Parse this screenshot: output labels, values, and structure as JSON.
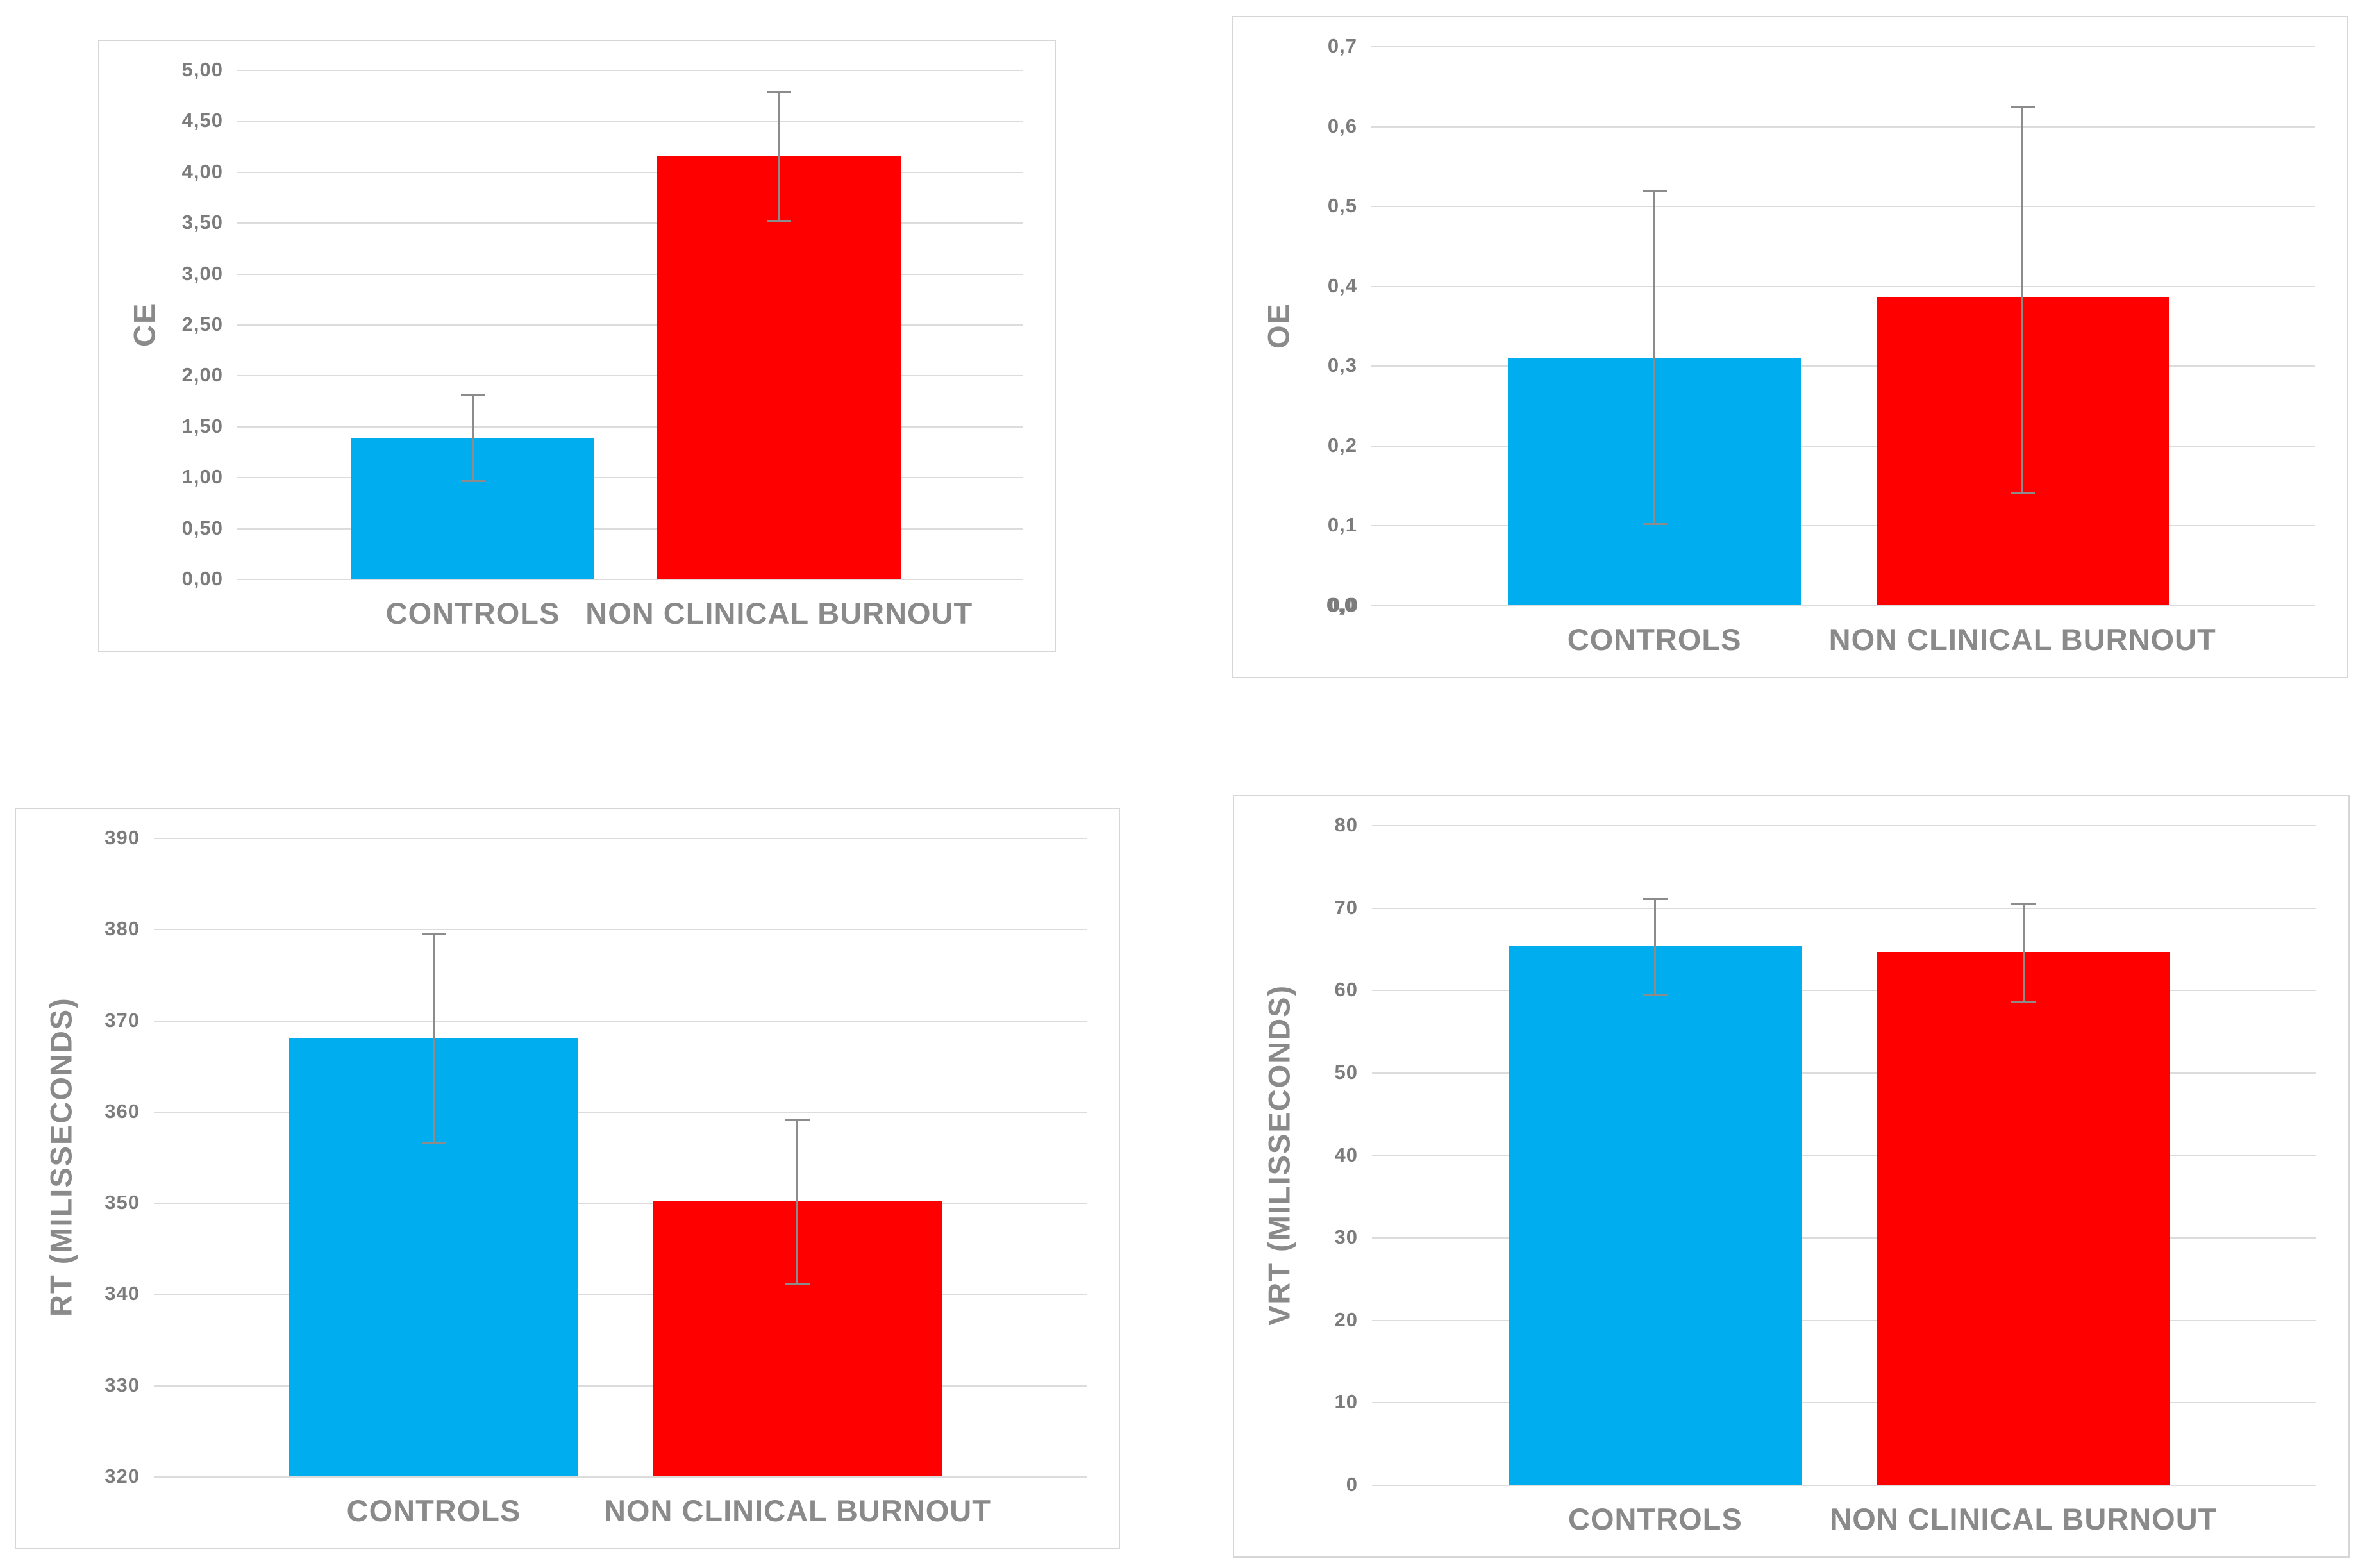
{
  "page": {
    "background": "#ffffff"
  },
  "colors": {
    "controls_bar": "#00AEEF",
    "burnout_bar": "#FF0000",
    "grid_line": "#DCDCDC",
    "panel_border": "#D6D6D6",
    "axis_text": "#8A8A8A",
    "tick_text": "#7C7C7C",
    "error_bar": "#8C8C8C"
  },
  "chart_data": [
    {
      "id": "ce",
      "type": "bar",
      "title": "",
      "ylabel": "CE",
      "xlabel": "",
      "categories": [
        "CONTROLS",
        "NON CLINICAL BURNOUT"
      ],
      "values": [
        1.38,
        4.15
      ],
      "error_low": [
        0.95,
        3.51
      ],
      "error_high": [
        1.82,
        4.79
      ],
      "ylim": [
        0,
        5
      ],
      "ytick_step": 0.5,
      "ytick_labels": [
        "0,00",
        "0,50",
        "1,00",
        "1,50",
        "2,00",
        "2,50",
        "3,00",
        "3,50",
        "4,00",
        "4,50",
        "5,00"
      ],
      "grid": true,
      "legend_position": "none",
      "bar_colors": [
        "#00AEEF",
        "#FF0000"
      ],
      "bold_bottom_tick": false
    },
    {
      "id": "oe",
      "type": "bar",
      "title": "",
      "ylabel": "OE",
      "xlabel": "",
      "categories": [
        "CONTROLS",
        "NON CLINICAL BURNOUT"
      ],
      "values": [
        0.31,
        0.385
      ],
      "error_low": [
        0.1,
        0.14
      ],
      "error_high": [
        0.52,
        0.625
      ],
      "ylim": [
        0,
        0.7
      ],
      "ytick_step": 0.1,
      "ytick_labels": [
        "0,0",
        "0,1",
        "0,2",
        "0,3",
        "0,4",
        "0,5",
        "0,6",
        "0,7"
      ],
      "grid": true,
      "legend_position": "none",
      "bar_colors": [
        "#00AEEF",
        "#FF0000"
      ],
      "bold_bottom_tick": true
    },
    {
      "id": "rt",
      "type": "bar",
      "title": "",
      "ylabel": "RT (MILISSECONDS)",
      "xlabel": "",
      "categories": [
        "CONTROLS",
        "NON CLINICAL BURNOUT"
      ],
      "values": [
        368,
        350.2
      ],
      "error_low": [
        356.5,
        341
      ],
      "error_high": [
        379.5,
        359.2
      ],
      "ylim": [
        320,
        390
      ],
      "ytick_step": 10,
      "ytick_labels": [
        "320",
        "330",
        "340",
        "350",
        "360",
        "370",
        "380",
        "390"
      ],
      "grid": true,
      "legend_position": "none",
      "bar_colors": [
        "#00AEEF",
        "#FF0000"
      ],
      "bold_bottom_tick": false
    },
    {
      "id": "vrt",
      "type": "bar",
      "title": "",
      "ylabel": "VRT (MILISSECONDS)",
      "xlabel": "",
      "categories": [
        "CONTROLS",
        "NON CLINICAL BURNOUT"
      ],
      "values": [
        65.3,
        64.6
      ],
      "error_low": [
        59.3,
        58.4
      ],
      "error_high": [
        71.1,
        70.6
      ],
      "ylim": [
        0,
        80
      ],
      "ytick_step": 10,
      "ytick_labels": [
        "0",
        "10",
        "20",
        "30",
        "40",
        "50",
        "60",
        "70",
        "80"
      ],
      "grid": true,
      "legend_position": "none",
      "bar_colors": [
        "#00AEEF",
        "#FF0000"
      ],
      "bold_bottom_tick": false
    }
  ]
}
